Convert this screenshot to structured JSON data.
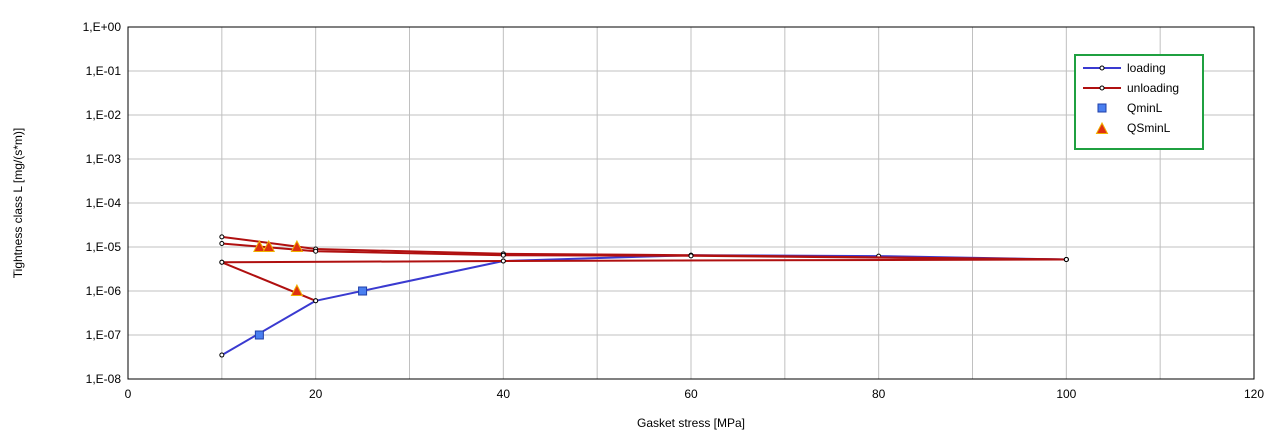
{
  "chart_data": {
    "type": "line",
    "title": "",
    "xlabel": "Gasket stress [MPa]",
    "ylabel": "Tightness class L [mg/(s*m)]",
    "xlim": [
      0,
      120
    ],
    "x_ticks": [
      0,
      20,
      40,
      60,
      80,
      100,
      120
    ],
    "x_tick_labels": [
      "0",
      "20",
      "40",
      "60",
      "80",
      "100",
      "120"
    ],
    "y_scale": "log",
    "ylim": [
      1e-08,
      1
    ],
    "y_ticks": [
      1e-08,
      1e-07,
      1e-06,
      1e-05,
      0.0001,
      0.001,
      0.01,
      0.1,
      1
    ],
    "y_tick_labels": [
      "1,E-08",
      "1,E-07",
      "1,E-06",
      "1,E-05",
      "1,E-04",
      "1,E-03",
      "1,E-02",
      "1,E-01",
      "1,E+00"
    ],
    "grid": true,
    "legend_position": "top-right",
    "series": [
      {
        "name": "loading",
        "kind": "line",
        "color": "#3a3ad0",
        "points": [
          [
            10,
            3.5e-08
          ],
          [
            20,
            6e-07
          ],
          [
            40,
            4.8e-06
          ],
          [
            60,
            6.5e-06
          ],
          [
            80,
            6.2e-06
          ],
          [
            100,
            5.2e-06
          ]
        ]
      },
      {
        "name": "unloading",
        "kind": "line",
        "color": "#b01010",
        "lines": [
          [
            [
              10,
              1.7e-05
            ],
            [
              20,
              9e-06
            ],
            [
              40,
              7e-06
            ],
            [
              60,
              6.5e-06
            ],
            [
              100,
              5.2e-06
            ]
          ],
          [
            [
              10,
              1.2e-05
            ],
            [
              20,
              8e-06
            ],
            [
              40,
              6.5e-06
            ],
            [
              60,
              6.3e-06
            ],
            [
              100,
              5.2e-06
            ]
          ],
          [
            [
              10,
              4.5e-06
            ],
            [
              20,
              6e-07
            ]
          ],
          [
            [
              10,
              4.5e-06
            ],
            [
              40,
              4.8e-06
            ],
            [
              100,
              5.2e-06
            ]
          ]
        ]
      },
      {
        "name": "QminL",
        "kind": "marker",
        "marker": "square",
        "color": "#4a7ff0",
        "points": [
          [
            14,
            1e-07
          ],
          [
            25,
            1e-06
          ]
        ]
      },
      {
        "name": "QSminL",
        "kind": "marker",
        "marker": "triangle",
        "color": "#e03010",
        "points": [
          [
            14,
            1e-05
          ],
          [
            15,
            1e-05
          ],
          [
            18,
            1e-05
          ],
          [
            18,
            1e-06
          ]
        ]
      }
    ]
  }
}
